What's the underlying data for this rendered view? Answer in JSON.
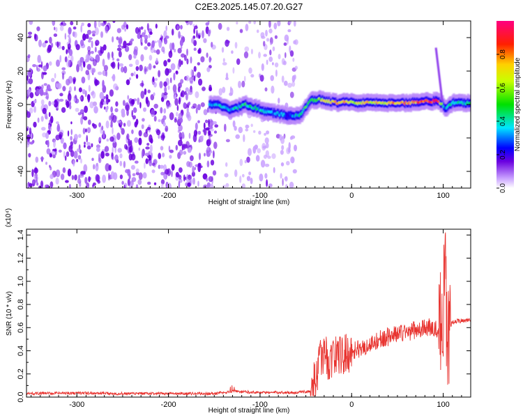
{
  "title": "C2E3.2025.145.07.20.G27",
  "colors": {
    "background": "#ffffff",
    "axis": "#000000",
    "snr_line": "#e8332f",
    "noise_purple": "#6a00e0"
  },
  "chart_data": [
    {
      "type": "heatmap",
      "title": "C2E3.2025.145.07.20.G27",
      "xlabel": "Height of straight line (km)",
      "ylabel": "Frequency (Hz)",
      "xlim": [
        -355,
        130
      ],
      "ylim": [
        -50,
        50
      ],
      "xticks": [
        -300,
        -200,
        -100,
        0,
        100
      ],
      "yticks": [
        -40,
        -20,
        0,
        20,
        40
      ],
      "xtick_labels": [
        "-300",
        "-200",
        "-100",
        "0",
        "100"
      ],
      "ytick_labels": [
        "-40",
        "-20",
        "0",
        "20",
        "40"
      ],
      "colormap": "rainbow",
      "colorbar": {
        "label": "Normalized spectral amplitude",
        "range": [
          0.0,
          1.0
        ],
        "ticks": [
          0.0,
          0.2,
          0.4,
          0.6,
          0.8
        ],
        "tick_labels": [
          "0.0",
          "0.2",
          "0.4",
          "0.6",
          "0.8"
        ]
      },
      "noise_region_km": [
        -355,
        -60
      ],
      "signal_trace": {
        "x": [
          -155,
          -145,
          -135,
          -125,
          -115,
          -105,
          -95,
          -85,
          -75,
          -65,
          -55,
          -45,
          -35,
          -25,
          -15,
          -5,
          5,
          15,
          25,
          35,
          45,
          55,
          65,
          75,
          85,
          95,
          100,
          102,
          110,
          120,
          130
        ],
        "freq_hz": [
          0,
          0,
          -3,
          -2,
          0,
          -2,
          -4,
          -5,
          -6,
          -7,
          -6,
          2,
          3,
          2,
          1,
          2,
          1,
          1,
          1,
          1,
          1,
          1,
          1,
          2,
          2,
          2,
          0,
          -3,
          1,
          1,
          1
        ],
        "amplitude": [
          0.3,
          0.35,
          0.3,
          0.4,
          0.45,
          0.4,
          0.35,
          0.3,
          0.3,
          0.3,
          0.45,
          0.55,
          0.6,
          0.7,
          0.75,
          0.7,
          0.65,
          0.7,
          0.7,
          0.65,
          0.75,
          0.75,
          0.75,
          0.8,
          0.9,
          0.85,
          0.5,
          0.3,
          0.45,
          0.4,
          0.4
        ]
      },
      "spike": {
        "x": [
          92,
          99
        ],
        "freq_hz": [
          34,
          2
        ]
      }
    },
    {
      "type": "line",
      "title": "",
      "xlabel": "Height of straight line (km)",
      "ylabel": "SNR (10 * v/v)",
      "y_scale_label": "(x10⁴)",
      "xlim": [
        -355,
        130
      ],
      "ylim": [
        0.0,
        1.45
      ],
      "xticks": [
        -300,
        -200,
        -100,
        0,
        100
      ],
      "yticks": [
        0.0,
        0.2,
        0.4,
        0.6,
        0.8,
        1.0,
        1.2,
        1.4
      ],
      "xtick_labels": [
        "-300",
        "-200",
        "-100",
        "0",
        "100"
      ],
      "ytick_labels": [
        "0.0",
        "0.2",
        "0.4",
        "0.6",
        "0.8",
        "1.0",
        "1.2",
        "1.4"
      ],
      "series": [
        {
          "color": "#e8332f",
          "x": [
            -355,
            -300,
            -250,
            -200,
            -150,
            -130,
            -100,
            -60,
            -45,
            -40,
            -35,
            -30,
            -25,
            -20,
            -15,
            -10,
            -5,
            0,
            10,
            20,
            30,
            40,
            50,
            60,
            70,
            80,
            90,
            95,
            100,
            102,
            104,
            106,
            108,
            110,
            120,
            130
          ],
          "y": [
            0.03,
            0.035,
            0.03,
            0.03,
            0.03,
            0.05,
            0.04,
            0.04,
            0.05,
            0.15,
            0.3,
            0.4,
            0.3,
            0.35,
            0.38,
            0.35,
            0.38,
            0.4,
            0.42,
            0.45,
            0.5,
            0.52,
            0.55,
            0.56,
            0.58,
            0.6,
            0.6,
            0.55,
            0.8,
            1.3,
            0.4,
            0.5,
            0.62,
            0.65,
            0.66,
            0.67
          ]
        }
      ]
    }
  ]
}
